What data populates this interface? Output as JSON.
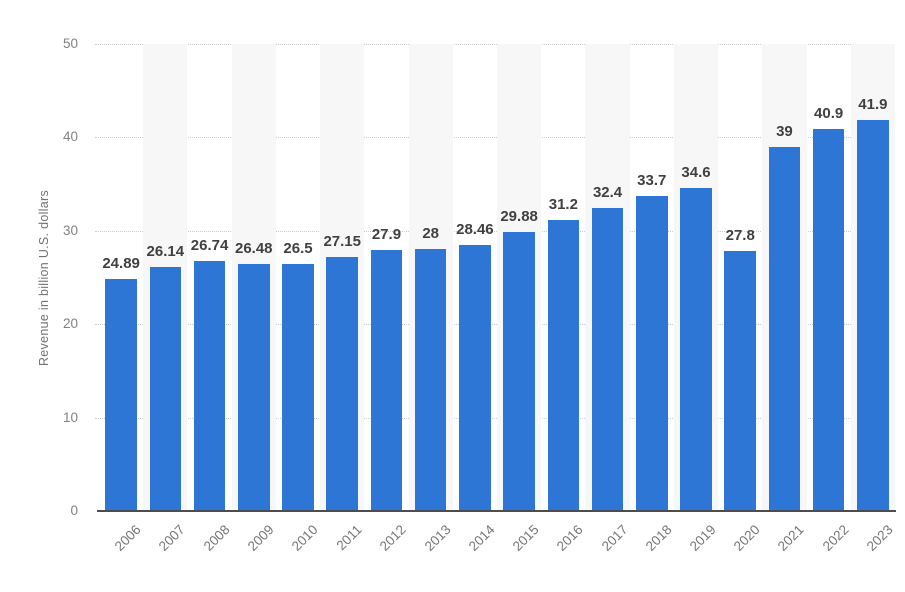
{
  "chart_data": {
    "type": "bar",
    "title": "",
    "xlabel": "",
    "ylabel": "Revenue in billion U.S. dollars",
    "categories": [
      "2006",
      "2007",
      "2008",
      "2009",
      "2010",
      "2011",
      "2012",
      "2013",
      "2014",
      "2015",
      "2016",
      "2017",
      "2018",
      "2019",
      "2020",
      "2021",
      "2022",
      "2023"
    ],
    "values": [
      24.89,
      26.14,
      26.74,
      26.48,
      26.5,
      27.15,
      27.9,
      28,
      28.46,
      29.88,
      31.2,
      32.4,
      33.7,
      34.6,
      27.8,
      39,
      40.9,
      41.9
    ],
    "value_labels": [
      "24.89",
      "26.14",
      "26.74",
      "26.48",
      "26.5",
      "27.15",
      "27.9",
      "28",
      "28.46",
      "29.88",
      "31.2",
      "32.4",
      "33.7",
      "34.6",
      "27.8",
      "39",
      "40.9",
      "41.9"
    ],
    "ylim": [
      0,
      50
    ],
    "yticks": [
      0,
      10,
      20,
      30,
      40,
      50
    ],
    "grid": "horizontal-dotted",
    "legend": "none",
    "colors": {
      "bar": "#2e76d5",
      "column_stripe": "#f7f7f7",
      "value_label": "#404040",
      "tick_label": "#828282",
      "axis_title": "#737373",
      "gridline": "#cccccc",
      "axis_line": "#4d4d4d",
      "background": "#ffffff"
    }
  }
}
